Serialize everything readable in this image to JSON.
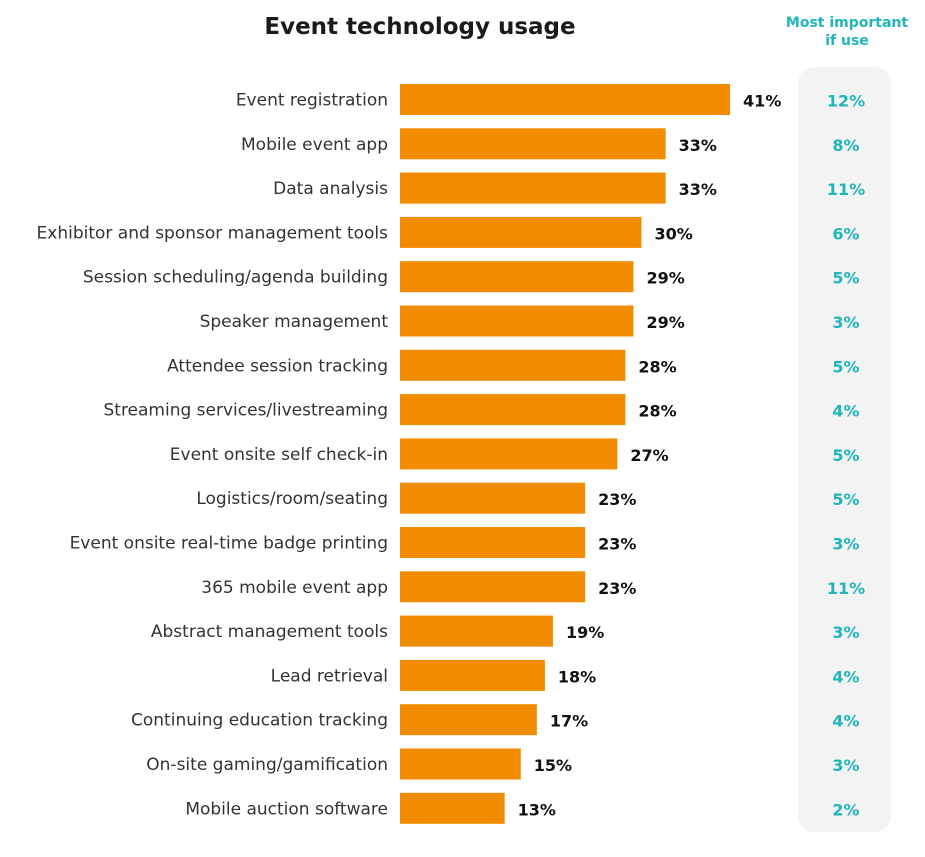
{
  "chart_data": {
    "type": "bar",
    "orientation": "horizontal",
    "title": "Event technology usage",
    "secondary_column_header": [
      "Most important",
      "if use"
    ],
    "categories": [
      "Event registration",
      "Mobile event app",
      "Data analysis",
      "Exhibitor and sponsor management tools",
      "Session scheduling/agenda building",
      "Speaker management",
      "Attendee session tracking",
      "Streaming services/livestreaming",
      "Event onsite self check-in",
      "Logistics/room/seating",
      "Event onsite real-time badge printing",
      "365 mobile event app",
      "Abstract management tools",
      "Lead retrieval",
      "Continuing education tracking",
      "On-site gaming/gamification",
      "Mobile auction software"
    ],
    "series": [
      {
        "values": [
          41,
          33,
          33,
          30,
          29,
          29,
          28,
          28,
          27,
          23,
          23,
          23,
          19,
          18,
          17,
          15,
          13
        ]
      },
      {
        "values": [
          12,
          8,
          11,
          6,
          5,
          3,
          5,
          4,
          5,
          5,
          3,
          11,
          3,
          4,
          4,
          3,
          2
        ]
      }
    ],
    "value_suffix": "%",
    "xlim": [
      0,
      50
    ],
    "grid": false,
    "colors": {
      "bar": "#f18c00",
      "important": "#1fb5bb",
      "panel": "#f3f3f3"
    }
  }
}
